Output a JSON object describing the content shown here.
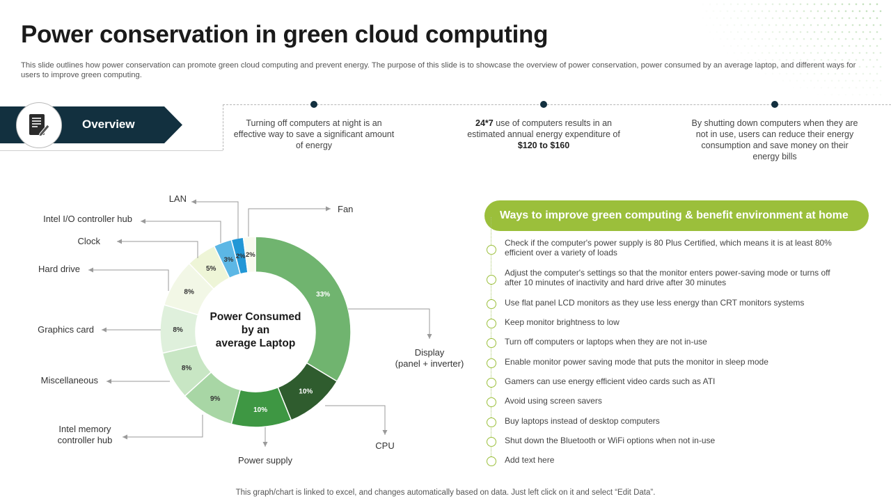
{
  "title": "Power conservation in green cloud computing",
  "subtitle": "This slide outlines how power conservation can promote green cloud computing and prevent energy. The purpose of this slide is to showcase the overview of power conservation, power consumed by an average laptop, and different ways for users to improve green computing.",
  "overview": {
    "label": "Overview",
    "icon": "document-edit-icon",
    "points": [
      {
        "html": "Turning off computers at night is an effective way to save a significant amount of energy"
      },
      {
        "html": "<b>24*7</b> use of computers results in an estimated annual energy expenditure of <b>$120 to $160</b>"
      },
      {
        "html": "By shutting down computers when they are not in use, users can reduce their energy consumption and save money on their energy bills"
      }
    ]
  },
  "chart_data": {
    "type": "pie",
    "center_label": [
      "Power Consumed",
      "by an",
      "average Laptop"
    ],
    "slices": [
      {
        "label": "Display (panel + inverter)",
        "value": 33,
        "data_label": "33%",
        "color": "#70b46f"
      },
      {
        "label": "CPU",
        "value": 10,
        "data_label": "10%",
        "color": "#2f5c2e"
      },
      {
        "label": "Power supply",
        "value": 10,
        "data_label": "10%",
        "color": "#3e9743"
      },
      {
        "label": "Intel memory controller hub",
        "value": 9,
        "data_label": "9%",
        "color": "#a8d6a5"
      },
      {
        "label": "Miscellaneous",
        "value": 8,
        "data_label": "8%",
        "color": "#c8e6c4"
      },
      {
        "label": "Graphics card",
        "value": 8,
        "data_label": "8%",
        "color": "#dff0dc"
      },
      {
        "label": "Hard drive",
        "value": 8,
        "data_label": "8%",
        "color": "#f2f7e6"
      },
      {
        "label": "Clock",
        "value": 5,
        "data_label": "5%",
        "color": "#eef5d7"
      },
      {
        "label": "Intel I/O controller hub",
        "value": 3,
        "data_label": "3%",
        "color": "#5cb7e5"
      },
      {
        "label": "LAN",
        "value": 2,
        "data_label": "2%",
        "color": "#2197d6"
      },
      {
        "label": "Fan",
        "value": 2,
        "data_label": "2%",
        "color": "#f8faee"
      }
    ]
  },
  "ways": {
    "title": "Ways to improve green computing & benefit environment at home",
    "items": [
      "Check if the computer's power supply is 80 Plus Certified, which means it is at least 80% efficient over a variety of loads",
      "Adjust the computer's settings so that the monitor enters power-saving mode or turns off after 10 minutes of inactivity and hard drive after 30 minutes",
      "Use flat panel LCD monitors as they use less energy than CRT monitors systems",
      "Keep monitor brightness to low",
      "Turn off computers or laptops when they are not in-use",
      "Enable monitor power saving mode that puts the monitor in sleep mode",
      "Gamers can use energy efficient video cards such as ATI",
      "Avoid using screen savers",
      "Buy laptops instead of desktop computers",
      "Shut down the Bluetooth or WiFi options when not in-use",
      "Add text here"
    ]
  },
  "footer": "This graph/chart is linked to excel,  and changes automatically based on data. Just left click on it and select “Edit Data”."
}
